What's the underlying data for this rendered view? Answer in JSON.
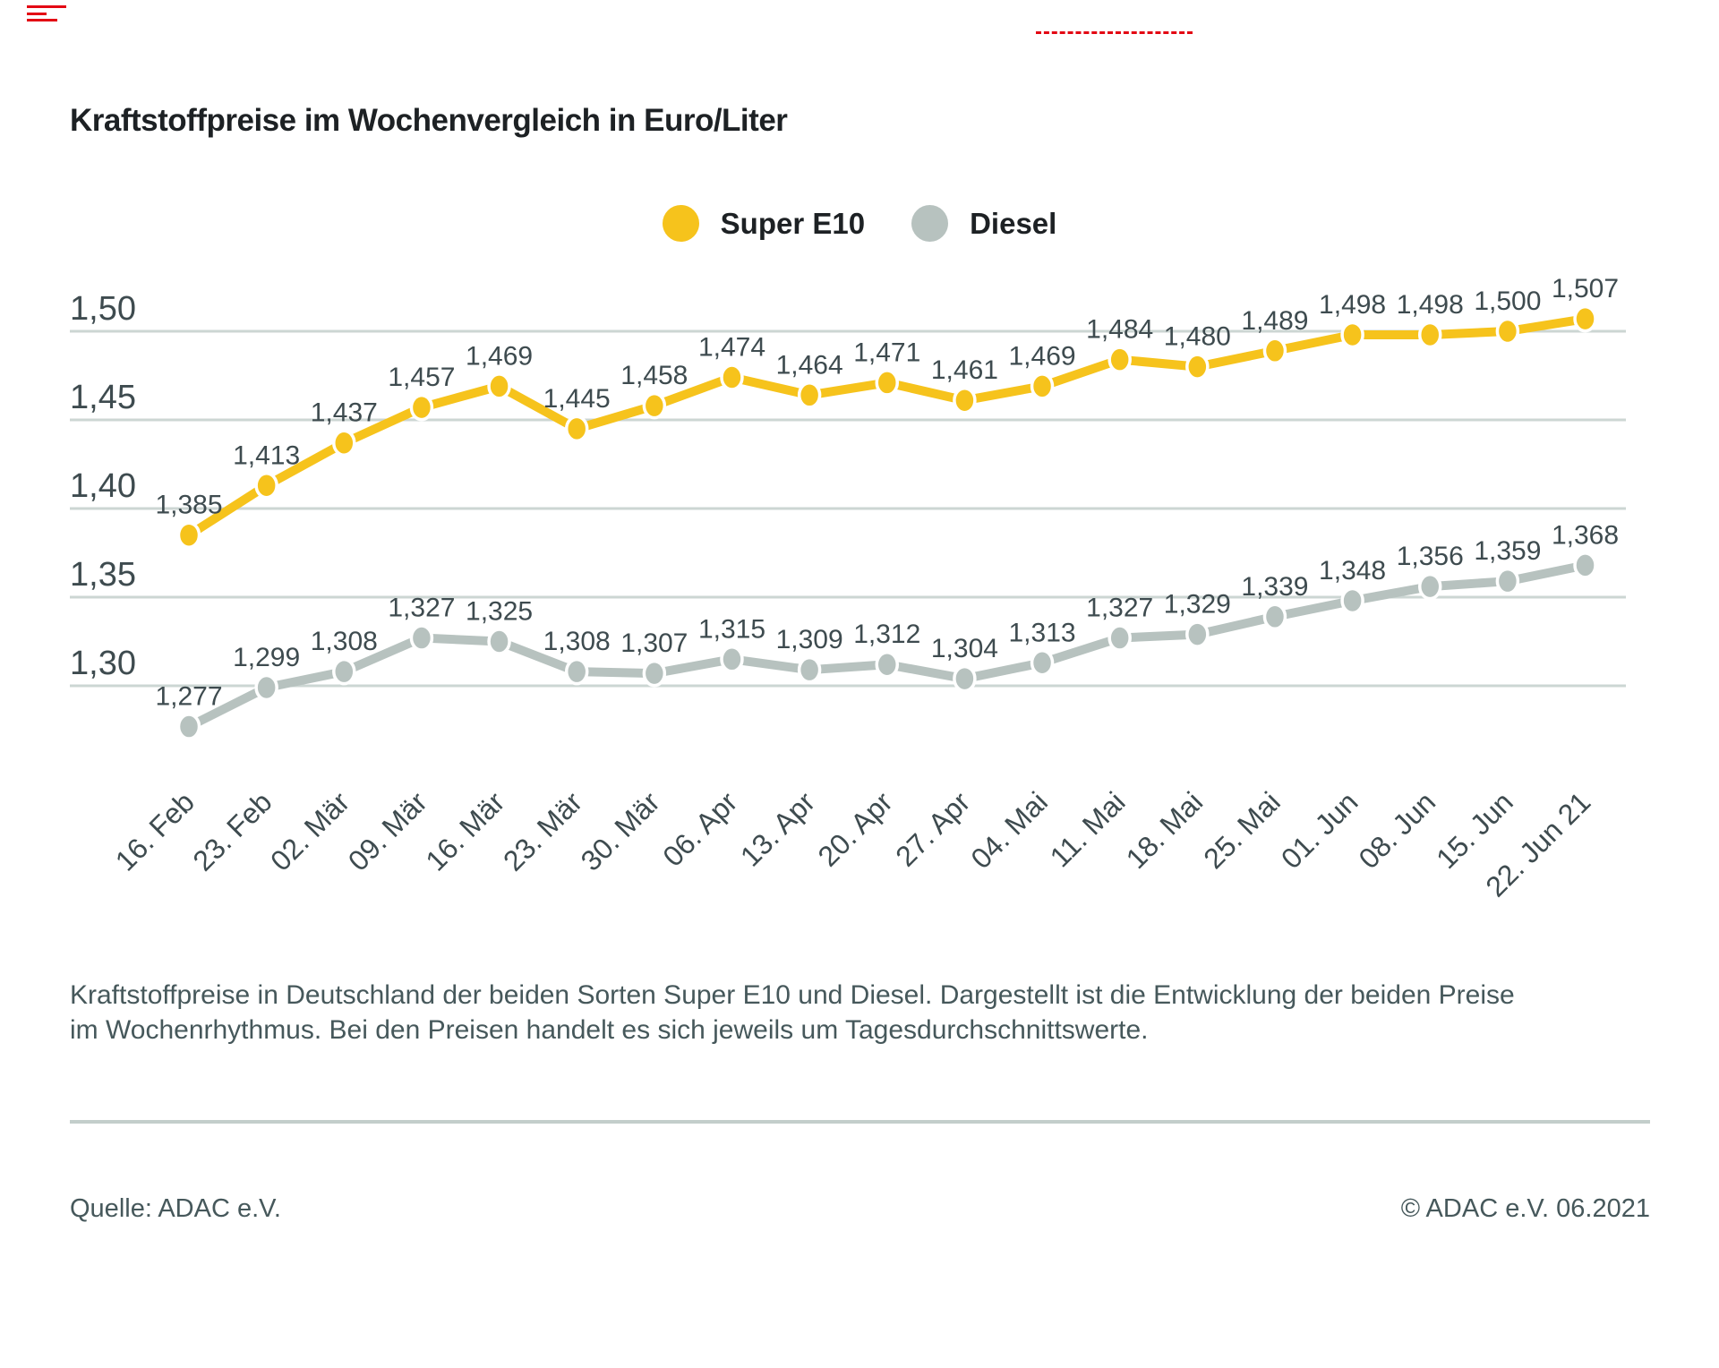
{
  "page": {
    "title": "Kraftstoffpreise im Wochenvergleich in Euro/Liter",
    "description": "Kraftstoffpreise in Deutschland der beiden Sorten Super E10 und Diesel. Dargestellt ist die Entwicklung der beiden Preise im Wochenrhythmus. Bei den Preisen handelt es sich jeweils um Tagesdurchschnittswerte.",
    "source": "Quelle: ADAC e.V.",
    "copyright": "© ADAC e.V. 06.2021"
  },
  "colors": {
    "super_e10": "#f6c31c",
    "diesel": "#b7c2bf",
    "grid": "#ccd6d3",
    "text_dark": "#1d2124",
    "text_slate": "#3e4b4f",
    "text_footer": "#46585b",
    "divider": "#c3cecb",
    "mark_red": "#e30613",
    "point_outline": "#ffffff"
  },
  "chart_data": {
    "type": "line",
    "title": "Kraftstoffpreise im Wochenvergleich in Euro/Liter",
    "unit": "Euro/Liter",
    "categories": [
      "16. Feb",
      "23. Feb",
      "02. Mär",
      "09. Mär",
      "16. Mär",
      "23. Mär",
      "30. Mär",
      "06. Apr",
      "13. Apr",
      "20. Apr",
      "27. Apr",
      "04. Mai",
      "11. Mai",
      "18. Mai",
      "25. Mai",
      "01. Jun",
      "08. Jun",
      "15. Jun",
      "22. Jun 21"
    ],
    "series": [
      {
        "name": "Super E10",
        "color": "#f6c31c",
        "values": [
          1.385,
          1.413,
          1.437,
          1.457,
          1.469,
          1.445,
          1.458,
          1.474,
          1.464,
          1.471,
          1.461,
          1.469,
          1.484,
          1.48,
          1.489,
          1.498,
          1.498,
          1.5,
          1.507
        ]
      },
      {
        "name": "Diesel",
        "color": "#b7c2bf",
        "values": [
          1.277,
          1.299,
          1.308,
          1.327,
          1.325,
          1.308,
          1.307,
          1.315,
          1.309,
          1.312,
          1.304,
          1.313,
          1.327,
          1.329,
          1.339,
          1.348,
          1.356,
          1.359,
          1.368
        ]
      }
    ],
    "yticks": [
      1.5,
      1.45,
      1.4,
      1.35,
      1.3
    ],
    "ylim": [
      1.26,
      1.52
    ],
    "grid": true,
    "legend_position": "top-center",
    "value_labels": true,
    "decimal_style": "comma"
  }
}
